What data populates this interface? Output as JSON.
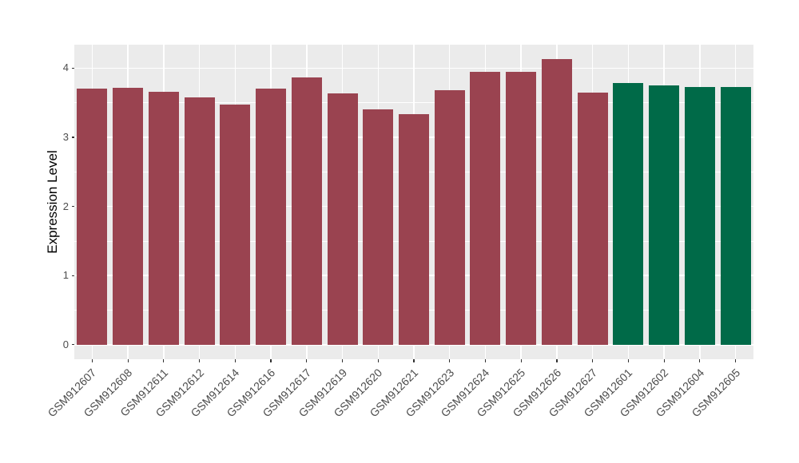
{
  "figure": {
    "background": "#FFFFFF"
  },
  "chart_data": {
    "type": "bar",
    "title": "",
    "xlabel": "",
    "ylabel": "Expression Level",
    "categories": [
      "GSM912607",
      "GSM912608",
      "GSM912611",
      "GSM912612",
      "GSM912614",
      "GSM912616",
      "GSM912617",
      "GSM912619",
      "GSM912620",
      "GSM912621",
      "GSM912623",
      "GSM912624",
      "GSM912625",
      "GSM912626",
      "GSM912627",
      "GSM912601",
      "GSM912602",
      "GSM912604",
      "GSM912605"
    ],
    "values": [
      3.71,
      3.72,
      3.66,
      3.58,
      3.47,
      3.71,
      3.87,
      3.63,
      3.41,
      3.34,
      3.68,
      3.95,
      3.95,
      4.13,
      3.65,
      3.78,
      3.75,
      3.73,
      3.73
    ],
    "bar_colors": [
      "#9A4350",
      "#9A4350",
      "#9A4350",
      "#9A4350",
      "#9A4350",
      "#9A4350",
      "#9A4350",
      "#9A4350",
      "#9A4350",
      "#9A4350",
      "#9A4350",
      "#9A4350",
      "#9A4350",
      "#9A4350",
      "#9A4350",
      "#006A48",
      "#006A48",
      "#006A48",
      "#006A48"
    ],
    "colors": {
      "maroon_bars": "#9A4350",
      "green_bars": "#006A48",
      "panel_background": "#EBEBEB",
      "grid": "#FFFFFF",
      "axis_text": "#4D4D4D",
      "axis_title": "#000000",
      "tick_marks": "#333333"
    },
    "y_axis": {
      "ticks": [
        0,
        1,
        2,
        3,
        4
      ],
      "tick_labels": [
        "0",
        "1",
        "2",
        "3",
        "4"
      ],
      "range": [
        -0.21,
        4.34
      ],
      "minor_grid_step": 0.5
    },
    "x_axis": {
      "tick_label_angle_deg": 45
    },
    "legend_position": "none",
    "grid": "major and minor horizontal white lines, major vertical white lines at category centers"
  }
}
